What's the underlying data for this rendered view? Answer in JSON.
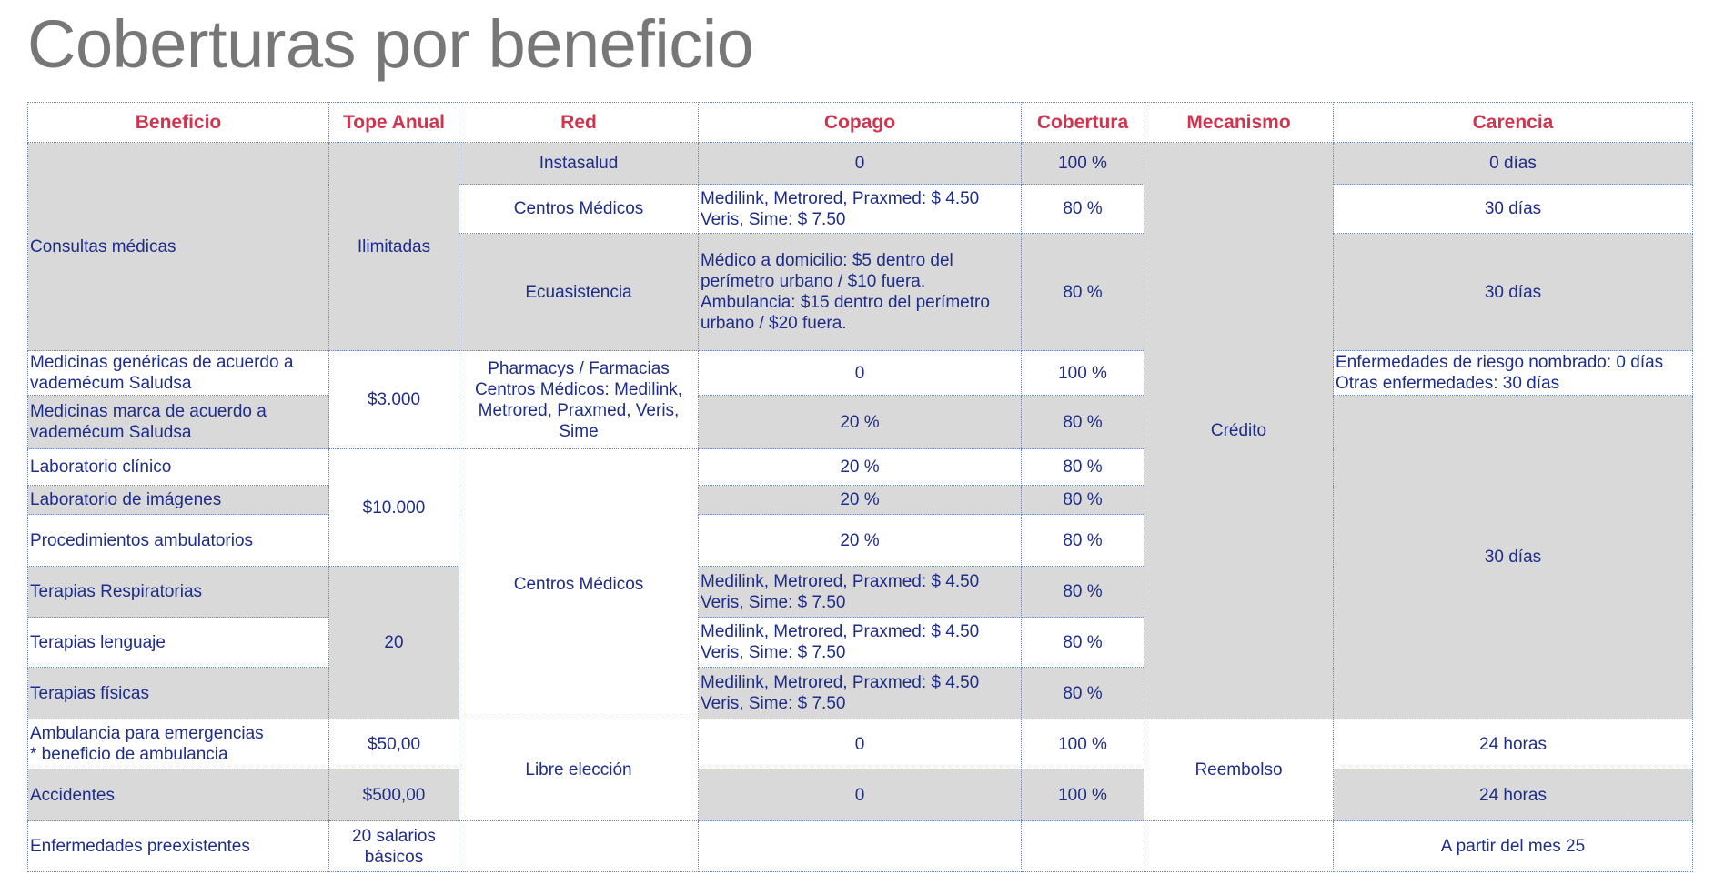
{
  "header": {
    "title": "Coberturas por beneficio"
  },
  "table": {
    "columns": [
      "Beneficio",
      "Tope Anual",
      "Red",
      "Copago",
      "Cobertura",
      "Mecanismo",
      "Carencia"
    ],
    "rows": [
      [
        "Consultas médicas",
        "Ilimitadas",
        "Instasalud",
        "0",
        "100 %",
        "Crédito",
        "0 días"
      ],
      [
        "Centros Médicos",
        "Medilink, Metrored, Praxmed: $ 4.50  Veris, Sime: $ 7.50",
        "80 %",
        "30 días"
      ],
      [
        "Ecuasistencia",
        "Médico a domicilio:   $5 dentro del perímetro urbano / $10 fuera.  Ambulancia:   $15 dentro del perímetro urbano / $20 fuera.",
        "80 %",
        "30 días"
      ],
      [
        "Medicinas genéricas de acuerdo a vademécum Saludsa",
        "$3.000",
        "Pharmacys / Farmacias\nCentros Médicos: Medilink, Metrored, Praxmed, Veris, Sime",
        "0",
        "100 %",
        "Enfermedades de riesgo nombrado: 0 días  Otras enfermedades: 30 días"
      ],
      [
        "Medicinas marca de acuerdo a vademécum Saludsa",
        "20 %",
        "80 %",
        "30 días"
      ],
      [
        "Laboratorio clínico",
        "$10.000",
        "Centros Médicos",
        "20 %",
        "80 %"
      ],
      [
        "Laboratorio de imágenes",
        "20 %",
        "80 %"
      ],
      [
        "Procedimientos ambulatorios",
        "20 %",
        "80 %"
      ],
      [
        "Terapias Respiratorias",
        "20",
        "Medilink, Metrored, Praxmed: $ 4.50  Veris, Sime: $ 7.50",
        "80 %"
      ],
      [
        "Terapias lenguaje",
        "Medilink, Metrored, Praxmed: $ 4.50  Veris, Sime: $ 7.50",
        "80 %"
      ],
      [
        "Terapias físicas",
        "Medilink, Metrored, Praxmed: $ 4.50  Veris, Sime: $ 7.50",
        "80 %"
      ],
      [
        "Ambulancia para emergencias\n* beneficio de ambulancia",
        "$50,00",
        "Libre elección",
        "0",
        "100 %",
        "Reembolso",
        "24 horas"
      ],
      [
        "Accidentes",
        "$500,00",
        "0",
        "100 %",
        "24 horas"
      ],
      [
        "Enfermedades preexistentes",
        "20 salarios\nbásicos",
        "A partir del mes 25"
      ]
    ]
  }
}
